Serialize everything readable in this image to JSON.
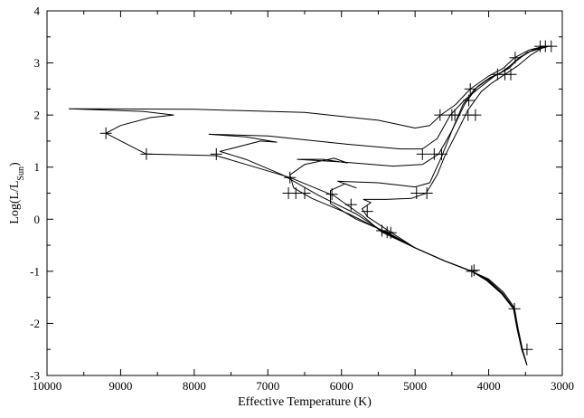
{
  "chart_data": {
    "type": "line",
    "title": "",
    "xlabel": "Effective Temperature (K)",
    "ylabel_main": "Log(L/L",
    "ylabel_sub": "Sun",
    "ylabel_close": ")",
    "xlim": [
      10000,
      3000
    ],
    "ylim": [
      -3,
      4
    ],
    "x_ticks": [
      10000,
      9000,
      8000,
      7000,
      6000,
      5000,
      4000,
      3000
    ],
    "x_tick_labels": [
      "10000",
      "9000",
      "8000",
      "7000",
      "6000",
      "5000",
      "4000",
      "3000"
    ],
    "y_ticks": [
      -3,
      -2,
      -1,
      0,
      1,
      2,
      3,
      4
    ],
    "y_tick_labels": [
      "-3",
      "-2",
      "-1",
      "0",
      "1",
      "2",
      "3",
      "4"
    ],
    "grid": false,
    "line_color": "#000000",
    "series": [
      {
        "points": [
          [
            3480,
            -2.8
          ],
          [
            3540,
            -2.5
          ],
          [
            3600,
            -2.1
          ],
          [
            3650,
            -1.7
          ],
          [
            3800,
            -1.4
          ],
          [
            4000,
            -1.15
          ],
          [
            4230,
            -1.0
          ],
          [
            4600,
            -0.8
          ],
          [
            5000,
            -0.55
          ],
          [
            5450,
            -0.25
          ],
          [
            5700,
            0.05
          ],
          [
            6100,
            0.45
          ],
          [
            6700,
            0.8
          ],
          [
            7700,
            1.22
          ],
          [
            8650,
            1.25
          ],
          [
            9200,
            1.65
          ],
          [
            9000,
            1.8
          ],
          [
            8600,
            1.95
          ],
          [
            8280,
            2.0
          ],
          [
            8700,
            2.07
          ],
          [
            9700,
            2.12
          ],
          [
            8000,
            2.11
          ],
          [
            6500,
            2.05
          ],
          [
            5500,
            1.9
          ],
          [
            5000,
            1.75
          ],
          [
            4800,
            1.8
          ],
          [
            4650,
            2.0
          ],
          [
            4450,
            2.2
          ],
          [
            4250,
            2.5
          ],
          [
            4000,
            2.75
          ],
          [
            3800,
            2.9
          ],
          [
            3650,
            3.1
          ],
          [
            3450,
            3.25
          ],
          [
            3250,
            3.32
          ]
        ]
      },
      {
        "points": [
          [
            3480,
            -2.8
          ],
          [
            3545,
            -2.5
          ],
          [
            3605,
            -2.1
          ],
          [
            3655,
            -1.72
          ],
          [
            3810,
            -1.42
          ],
          [
            4010,
            -1.16
          ],
          [
            4230,
            -1.0
          ],
          [
            4600,
            -0.8
          ],
          [
            5000,
            -0.55
          ],
          [
            5420,
            -0.25
          ],
          [
            5800,
            0.1
          ],
          [
            6300,
            0.45
          ],
          [
            6800,
            0.85
          ],
          [
            7300,
            1.15
          ],
          [
            7650,
            1.3
          ],
          [
            7100,
            1.5
          ],
          [
            6880,
            1.48
          ],
          [
            7300,
            1.58
          ],
          [
            7800,
            1.63
          ],
          [
            7000,
            1.6
          ],
          [
            6000,
            1.45
          ],
          [
            5200,
            1.35
          ],
          [
            4900,
            1.35
          ],
          [
            4700,
            1.55
          ],
          [
            4520,
            2.0
          ],
          [
            4320,
            2.3
          ],
          [
            4100,
            2.55
          ],
          [
            3920,
            2.75
          ],
          [
            3720,
            2.9
          ],
          [
            3590,
            3.1
          ],
          [
            3400,
            3.25
          ],
          [
            3200,
            3.32
          ]
        ]
      },
      {
        "points": [
          [
            3480,
            -2.8
          ],
          [
            3548,
            -2.5
          ],
          [
            3610,
            -2.1
          ],
          [
            3660,
            -1.72
          ],
          [
            3815,
            -1.42
          ],
          [
            4015,
            -1.17
          ],
          [
            4230,
            -1.0
          ],
          [
            4600,
            -0.8
          ],
          [
            5000,
            -0.55
          ],
          [
            5400,
            -0.25
          ],
          [
            5900,
            0.1
          ],
          [
            6400,
            0.4
          ],
          [
            6650,
            0.6
          ],
          [
            6700,
            0.85
          ],
          [
            6500,
            1.05
          ],
          [
            6100,
            1.17
          ],
          [
            5920,
            1.08
          ],
          [
            6250,
            1.15
          ],
          [
            6600,
            1.15
          ],
          [
            6000,
            1.1
          ],
          [
            5300,
            1.02
          ],
          [
            4900,
            1.05
          ],
          [
            4680,
            1.25
          ],
          [
            4500,
            1.7
          ],
          [
            4330,
            2.2
          ],
          [
            4150,
            2.55
          ],
          [
            3980,
            2.72
          ],
          [
            3780,
            2.85
          ],
          [
            3630,
            3.05
          ],
          [
            3440,
            3.22
          ],
          [
            3180,
            3.32
          ]
        ]
      },
      {
        "points": [
          [
            3480,
            -2.8
          ],
          [
            3550,
            -2.5
          ],
          [
            3612,
            -2.1
          ],
          [
            3662,
            -1.72
          ],
          [
            3820,
            -1.42
          ],
          [
            4020,
            -1.17
          ],
          [
            4230,
            -1.0
          ],
          [
            4600,
            -0.8
          ],
          [
            5000,
            -0.55
          ],
          [
            5380,
            -0.25
          ],
          [
            5800,
            0.0
          ],
          [
            6150,
            0.3
          ],
          [
            6150,
            0.55
          ],
          [
            5950,
            0.68
          ],
          [
            5800,
            0.6
          ],
          [
            6050,
            0.73
          ],
          [
            5500,
            0.7
          ],
          [
            5000,
            0.62
          ],
          [
            4800,
            0.7
          ],
          [
            4640,
            1.2
          ],
          [
            4500,
            1.7
          ],
          [
            4350,
            2.2
          ],
          [
            4190,
            2.5
          ],
          [
            4010,
            2.68
          ],
          [
            3830,
            2.82
          ],
          [
            3660,
            3.0
          ],
          [
            3480,
            3.2
          ],
          [
            3290,
            3.3
          ]
        ]
      },
      {
        "points": [
          [
            3480,
            -2.8
          ],
          [
            3552,
            -2.5
          ],
          [
            3615,
            -2.1
          ],
          [
            3665,
            -1.72
          ],
          [
            3825,
            -1.43
          ],
          [
            4025,
            -1.18
          ],
          [
            4230,
            -1.0
          ],
          [
            4600,
            -0.8
          ],
          [
            5000,
            -0.55
          ],
          [
            5330,
            -0.25
          ],
          [
            5650,
            0.05
          ],
          [
            5720,
            0.2
          ],
          [
            5600,
            0.32
          ],
          [
            5700,
            0.38
          ],
          [
            5400,
            0.38
          ],
          [
            5050,
            0.4
          ],
          [
            4850,
            0.5
          ],
          [
            4700,
            0.85
          ],
          [
            4600,
            1.2
          ],
          [
            4420,
            1.7
          ],
          [
            4280,
            2.1
          ],
          [
            4100,
            2.45
          ],
          [
            3950,
            2.62
          ],
          [
            3780,
            2.78
          ],
          [
            3600,
            2.95
          ],
          [
            3430,
            3.15
          ],
          [
            3260,
            3.3
          ]
        ]
      }
    ],
    "markers": [
      [
        3480,
        -2.5
      ],
      [
        3650,
        -1.72
      ],
      [
        4230,
        -1.0
      ],
      [
        4200,
        -0.98
      ],
      [
        5450,
        -0.22
      ],
      [
        5380,
        -0.25
      ],
      [
        5330,
        -0.26
      ],
      [
        9200,
        1.65
      ],
      [
        8650,
        1.25
      ],
      [
        7700,
        1.25
      ],
      [
        6700,
        0.8
      ],
      [
        6720,
        0.5
      ],
      [
        6620,
        0.5
      ],
      [
        6500,
        0.5
      ],
      [
        6130,
        0.48
      ],
      [
        5870,
        0.28
      ],
      [
        5650,
        0.15
      ],
      [
        4980,
        0.5
      ],
      [
        4840,
        0.5
      ],
      [
        4900,
        1.25
      ],
      [
        4740,
        1.25
      ],
      [
        4640,
        1.25
      ],
      [
        4660,
        2.0
      ],
      [
        4500,
        2.0
      ],
      [
        4460,
        2.0
      ],
      [
        4280,
        2.0
      ],
      [
        4180,
        2.0
      ],
      [
        4250,
        2.5
      ],
      [
        4270,
        2.28
      ],
      [
        3880,
        2.78
      ],
      [
        3780,
        2.78
      ],
      [
        3700,
        2.78
      ],
      [
        3640,
        3.1
      ],
      [
        3300,
        3.32
      ],
      [
        3230,
        3.32
      ],
      [
        3150,
        3.32
      ]
    ]
  }
}
